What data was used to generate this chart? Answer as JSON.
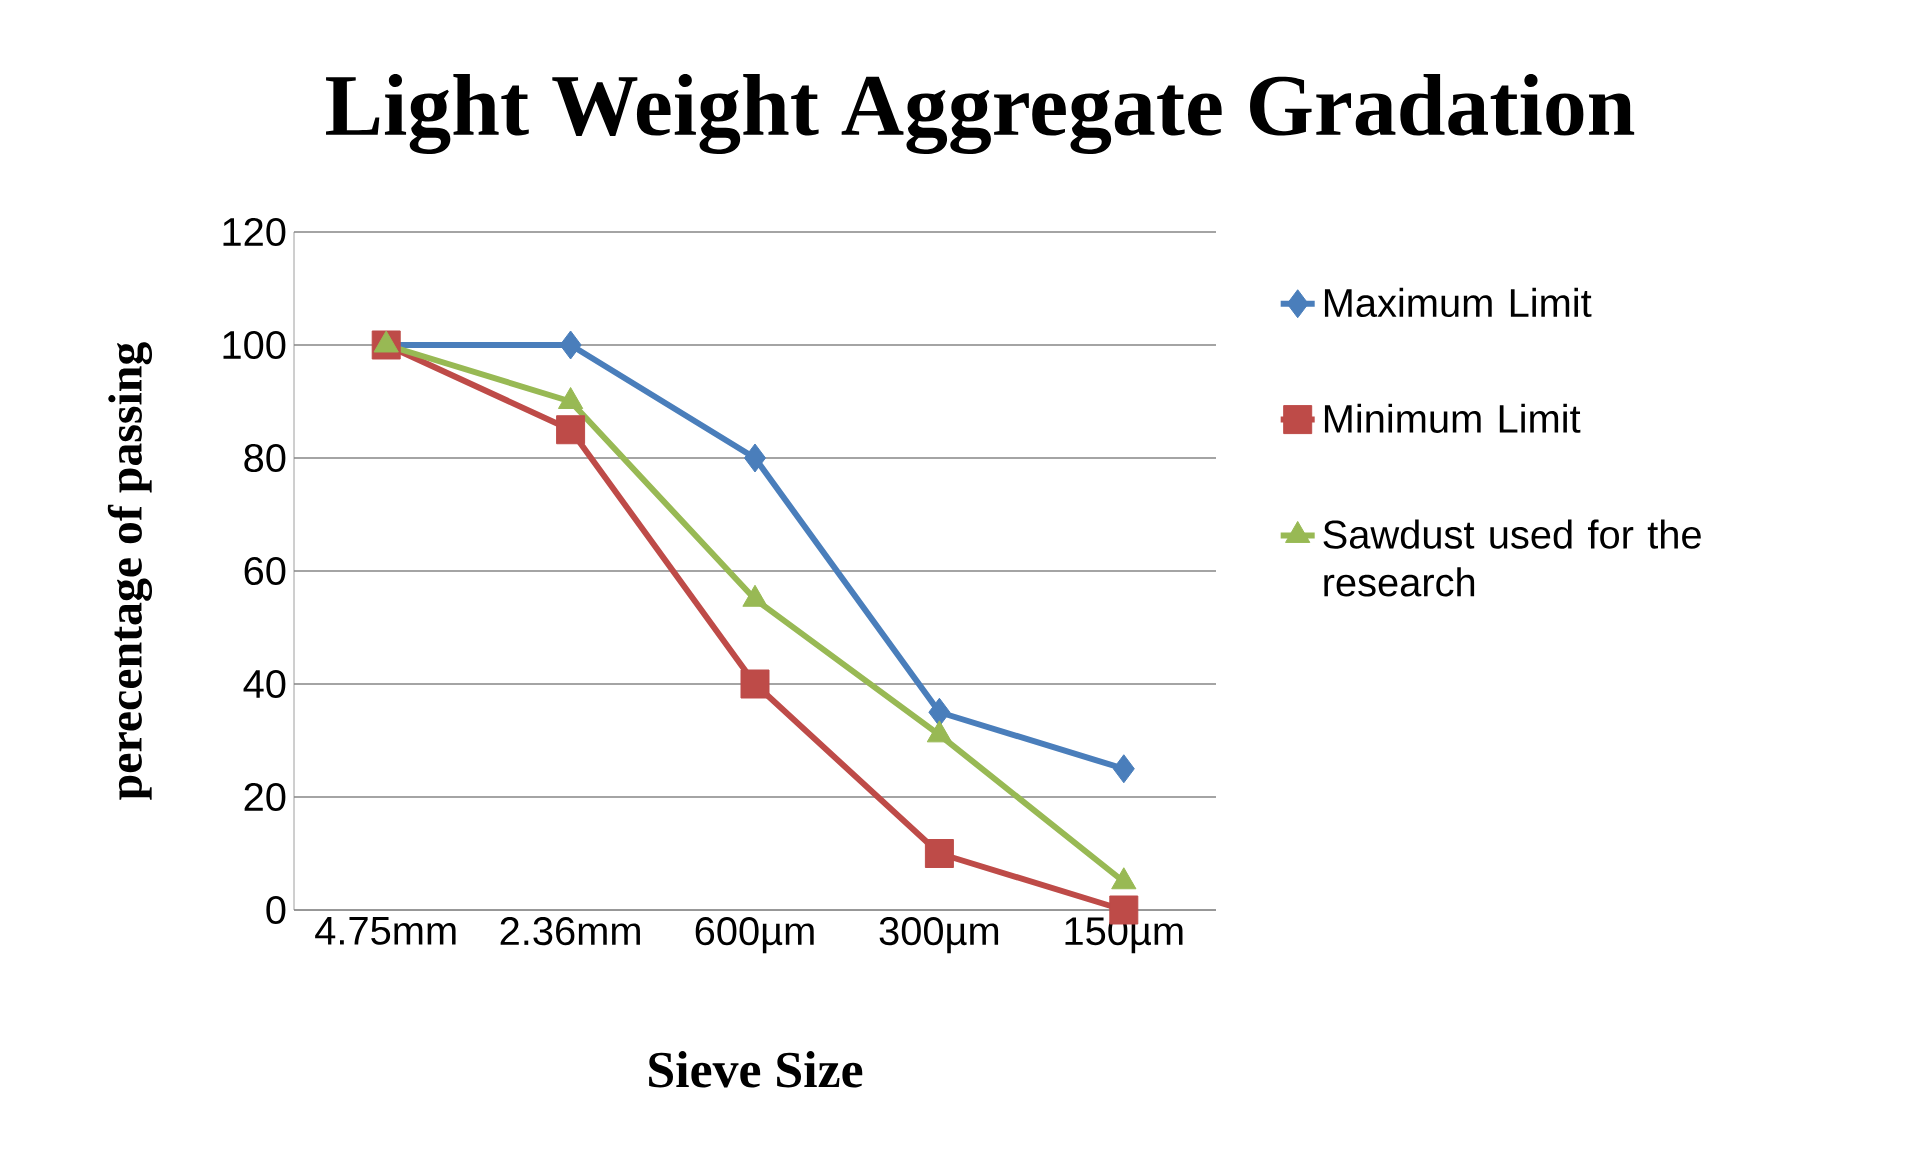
{
  "chart_data": {
    "type": "line",
    "title": "Light Weight Aggregate Gradation",
    "xlabel": "Sieve Size",
    "ylabel": "perecentage of passing",
    "categories": [
      "4.75mm",
      "2.36mm",
      "600µm",
      "300µm",
      "150µm"
    ],
    "series": [
      {
        "name": "Maximum Limit",
        "color": "#4a7ebb",
        "marker": "diamond",
        "values": [
          100,
          100,
          80,
          35,
          25
        ]
      },
      {
        "name": "Minimum Limit",
        "color": "#be4b48",
        "marker": "square",
        "values": [
          100,
          85,
          40,
          10,
          0
        ]
      },
      {
        "name": "Sawdust used for the research",
        "color": "#98b954",
        "marker": "triangle",
        "values": [
          100,
          90,
          55,
          31,
          5
        ]
      }
    ],
    "ylim": [
      0,
      120
    ],
    "yticks": [
      0,
      20,
      40,
      60,
      80,
      100,
      120
    ],
    "grid": "y",
    "legend": "right"
  }
}
